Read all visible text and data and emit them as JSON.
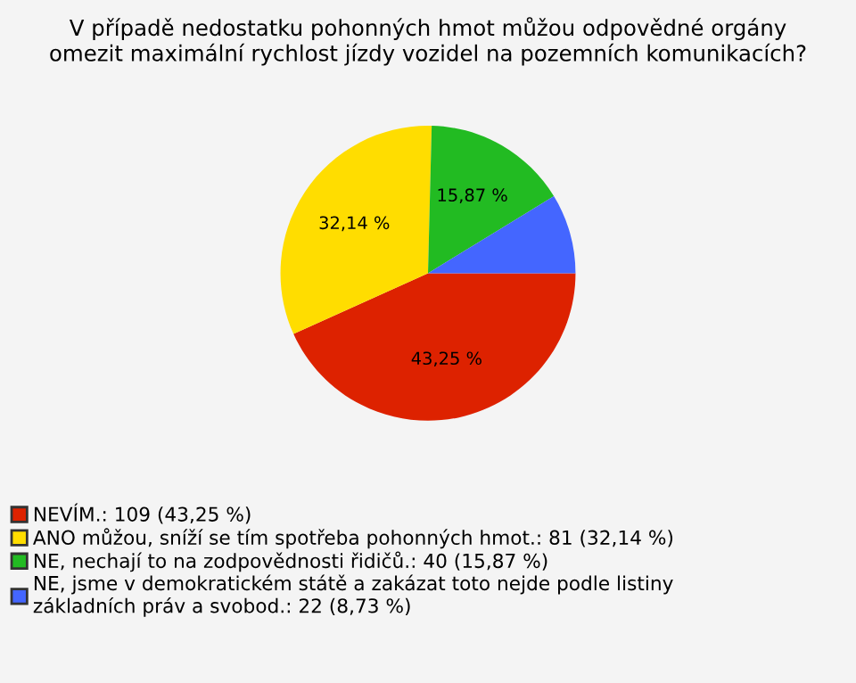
{
  "chart_data": {
    "type": "pie",
    "title": "V případě nedostatku pohonných hmot můžou odpovědné orgány\nomezit maximální rychlost jízdy vozidel na pozemních komunikacích?",
    "categories": [
      "NEVÍM.: 109 (43,25 %)",
      "ANO můžou, sníží se tím spotřeba pohonných hmot.: 81 (32,14 %)",
      "NE, nechají to na zodpovědnosti řidičů.: 40 (15,87 %)",
      "NE, jsme v demokratickém státě a zakázat toto nejde podle listiny\nzákladních práv a svobod.: 22 (8,73 %)"
    ],
    "values": [
      43.25,
      32.14,
      15.87,
      8.73
    ],
    "value_labels": [
      "43,25 %",
      "32,14 %",
      "15,87 %",
      null
    ],
    "colors": [
      "#dd2200",
      "#ffdd00",
      "#22bb22",
      "#4466ff"
    ],
    "legend": "bottom"
  }
}
